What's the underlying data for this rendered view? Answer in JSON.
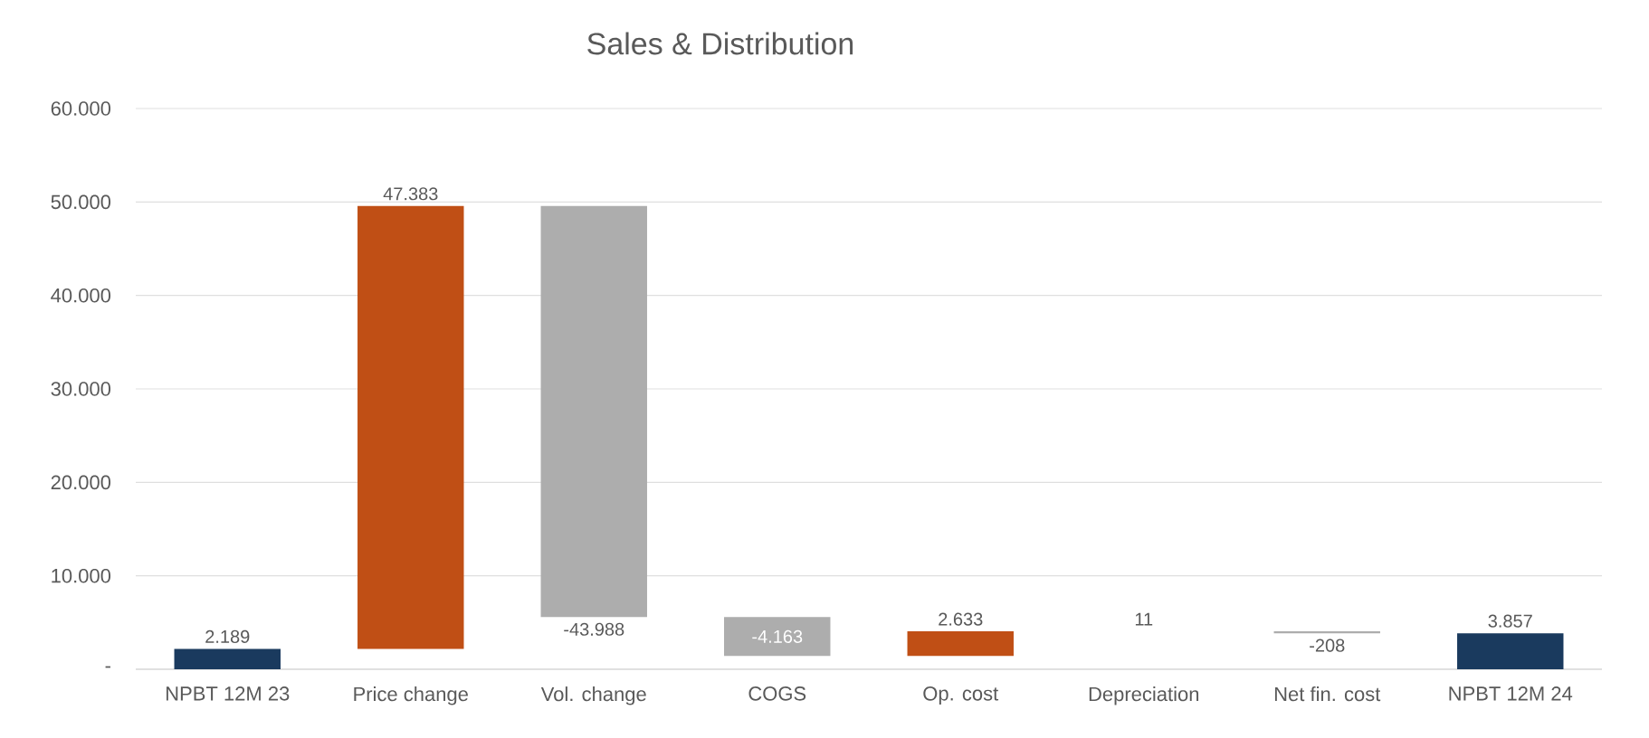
{
  "chart_data": {
    "type": "bar",
    "title": "Sales & Distribution",
    "categories": [
      "NPBT 12M 23",
      "Price change",
      "Vol. change",
      "COGS",
      "Op. cost",
      "Depreciation",
      "Net fin. cost",
      "NPBT 12M  24"
    ],
    "values": [
      2189,
      47383,
      -43988,
      -4163,
      2633,
      11,
      -208,
      3857
    ],
    "base": [
      0,
      2189,
      49572,
      5584,
      1421,
      4054,
      4065,
      0
    ],
    "colors": [
      "#1a3a5e",
      "#c04f15",
      "#adadad",
      "#adadad",
      "#c04f15",
      "#c04f15",
      "#adadad",
      "#1a3a5e"
    ],
    "value_labels": [
      "2.189",
      "47.383",
      "-43.988",
      "-4.163",
      "2.633",
      "11",
      "-208",
      "3.857"
    ],
    "ylim": [
      0,
      60000
    ],
    "yticks": [
      {
        "value": 0,
        "label": "-"
      },
      {
        "value": 10000,
        "label": "10.000"
      },
      {
        "value": 20000,
        "label": "20.000"
      },
      {
        "value": 30000,
        "label": "30.000"
      },
      {
        "value": 40000,
        "label": "40.000"
      },
      {
        "value": 50000,
        "label": "50.000"
      },
      {
        "value": 60000,
        "label": "60.000"
      }
    ],
    "grid": "y"
  }
}
